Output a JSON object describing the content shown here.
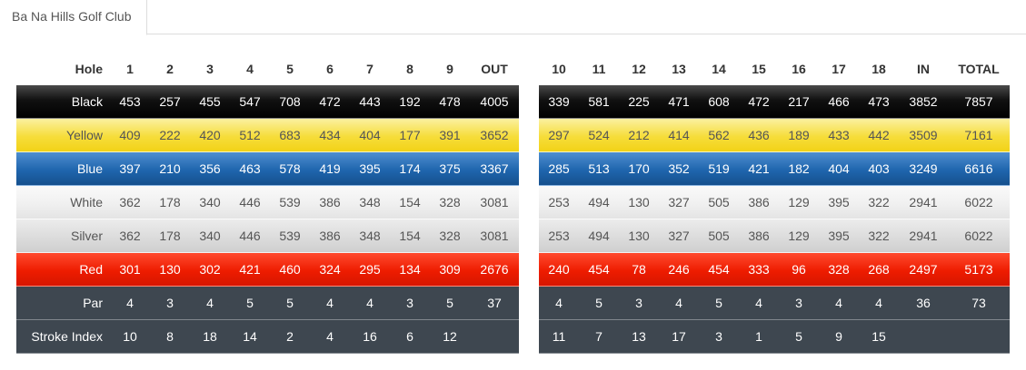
{
  "tab": {
    "label": "Ba Na Hills Golf Club"
  },
  "front": {
    "header": [
      "Hole",
      "1",
      "2",
      "3",
      "4",
      "5",
      "6",
      "7",
      "8",
      "9",
      "OUT"
    ],
    "rows": [
      {
        "key": "black",
        "label": "Black",
        "values": [
          "453",
          "257",
          "455",
          "547",
          "708",
          "472",
          "443",
          "192",
          "478",
          "4005"
        ]
      },
      {
        "key": "yellow",
        "label": "Yellow",
        "values": [
          "409",
          "222",
          "420",
          "512",
          "683",
          "434",
          "404",
          "177",
          "391",
          "3652"
        ]
      },
      {
        "key": "blue",
        "label": "Blue",
        "values": [
          "397",
          "210",
          "356",
          "463",
          "578",
          "419",
          "395",
          "174",
          "375",
          "3367"
        ]
      },
      {
        "key": "white",
        "label": "White",
        "values": [
          "362",
          "178",
          "340",
          "446",
          "539",
          "386",
          "348",
          "154",
          "328",
          "3081"
        ]
      },
      {
        "key": "silver",
        "label": "Silver",
        "values": [
          "362",
          "178",
          "340",
          "446",
          "539",
          "386",
          "348",
          "154",
          "328",
          "3081"
        ]
      },
      {
        "key": "red",
        "label": "Red",
        "values": [
          "301",
          "130",
          "302",
          "421",
          "460",
          "324",
          "295",
          "134",
          "309",
          "2676"
        ]
      },
      {
        "key": "par",
        "label": "Par",
        "values": [
          "4",
          "3",
          "4",
          "5",
          "5",
          "4",
          "4",
          "3",
          "5",
          "37"
        ]
      },
      {
        "key": "si",
        "label": "Stroke Index",
        "values": [
          "10",
          "8",
          "18",
          "14",
          "2",
          "4",
          "16",
          "6",
          "12",
          ""
        ]
      }
    ]
  },
  "back": {
    "header": [
      "10",
      "11",
      "12",
      "13",
      "14",
      "15",
      "16",
      "17",
      "18",
      "IN",
      "TOTAL"
    ],
    "rows": [
      {
        "key": "black",
        "values": [
          "339",
          "581",
          "225",
          "471",
          "608",
          "472",
          "217",
          "466",
          "473",
          "3852",
          "7857"
        ]
      },
      {
        "key": "yellow",
        "values": [
          "297",
          "524",
          "212",
          "414",
          "562",
          "436",
          "189",
          "433",
          "442",
          "3509",
          "7161"
        ]
      },
      {
        "key": "blue",
        "values": [
          "285",
          "513",
          "170",
          "352",
          "519",
          "421",
          "182",
          "404",
          "403",
          "3249",
          "6616"
        ]
      },
      {
        "key": "white",
        "values": [
          "253",
          "494",
          "130",
          "327",
          "505",
          "386",
          "129",
          "395",
          "322",
          "2941",
          "6022"
        ]
      },
      {
        "key": "silver",
        "values": [
          "253",
          "494",
          "130",
          "327",
          "505",
          "386",
          "129",
          "395",
          "322",
          "2941",
          "6022"
        ]
      },
      {
        "key": "red",
        "values": [
          "240",
          "454",
          "78",
          "246",
          "454",
          "333",
          "96",
          "328",
          "268",
          "2497",
          "5173"
        ]
      },
      {
        "key": "par",
        "values": [
          "4",
          "5",
          "3",
          "4",
          "5",
          "4",
          "3",
          "4",
          "4",
          "36",
          "73"
        ]
      },
      {
        "key": "si",
        "values": [
          "11",
          "7",
          "13",
          "17",
          "3",
          "1",
          "5",
          "9",
          "15",
          "",
          ""
        ]
      }
    ]
  },
  "colors": {
    "black": "#000000",
    "yellow": "#f4d826",
    "blue": "#1f65ad",
    "white": "#f0f0f0",
    "silver": "#dcdcdc",
    "red": "#ee1c00",
    "par": "#3e4750"
  }
}
